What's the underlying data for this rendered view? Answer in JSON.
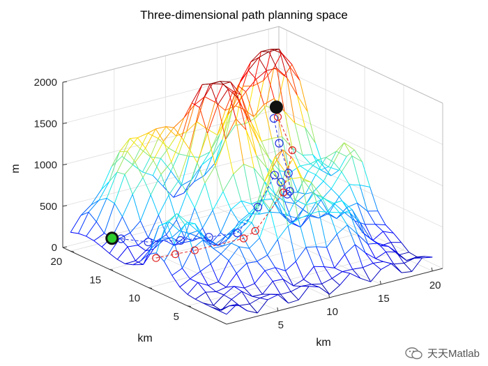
{
  "chart_data": {
    "type": "surface-3d",
    "title": "Three-dimensional path planning space",
    "xlabel": "km",
    "ylabel": "km",
    "zlabel": "m",
    "xlim": [
      0,
      21
    ],
    "ylim": [
      0,
      21
    ],
    "zlim": [
      0,
      2000
    ],
    "xticks": [
      "5",
      "10",
      "15",
      "20"
    ],
    "yticks": [
      "5",
      "10",
      "15",
      "20"
    ],
    "zticks": [
      "0",
      "500",
      "1000",
      "1500",
      "2000"
    ],
    "grid": true,
    "colormap": "jet",
    "start_point": {
      "x": 1,
      "y": 16,
      "z": 300,
      "color": "#2ecc2e"
    },
    "goal_point": {
      "x": 20,
      "y": 20,
      "z": 1100,
      "color": "#111111"
    },
    "path_blue": [
      {
        "x": 1.5,
        "y": 15.5,
        "z": 300
      },
      {
        "x": 3,
        "y": 14,
        "z": 280
      },
      {
        "x": 5,
        "y": 12.5,
        "z": 300
      },
      {
        "x": 7,
        "y": 11.5,
        "z": 320
      },
      {
        "x": 9,
        "y": 10.5,
        "z": 350
      },
      {
        "x": 11,
        "y": 10.5,
        "z": 600
      },
      {
        "x": 13,
        "y": 11,
        "z": 900
      },
      {
        "x": 14,
        "y": 11.5,
        "z": 760
      },
      {
        "x": 15,
        "y": 12,
        "z": 560
      },
      {
        "x": 16,
        "y": 13,
        "z": 520
      },
      {
        "x": 17,
        "y": 14.5,
        "z": 640
      },
      {
        "x": 18,
        "y": 17,
        "z": 860
      },
      {
        "x": 19,
        "y": 19,
        "z": 1040
      }
    ],
    "path_red": [
      {
        "x": 3,
        "y": 13,
        "z": 130
      },
      {
        "x": 4.5,
        "y": 12.5,
        "z": 150
      },
      {
        "x": 6,
        "y": 12,
        "z": 170
      },
      {
        "x": 10,
        "y": 11,
        "z": 230
      },
      {
        "x": 11.5,
        "y": 11.5,
        "z": 250
      },
      {
        "x": 15,
        "y": 12.5,
        "z": 560
      },
      {
        "x": 17,
        "y": 14,
        "z": 940
      },
      {
        "x": 19,
        "y": 18.5,
        "z": 1080
      }
    ]
  },
  "watermark": {
    "text": "天天Matlab"
  }
}
